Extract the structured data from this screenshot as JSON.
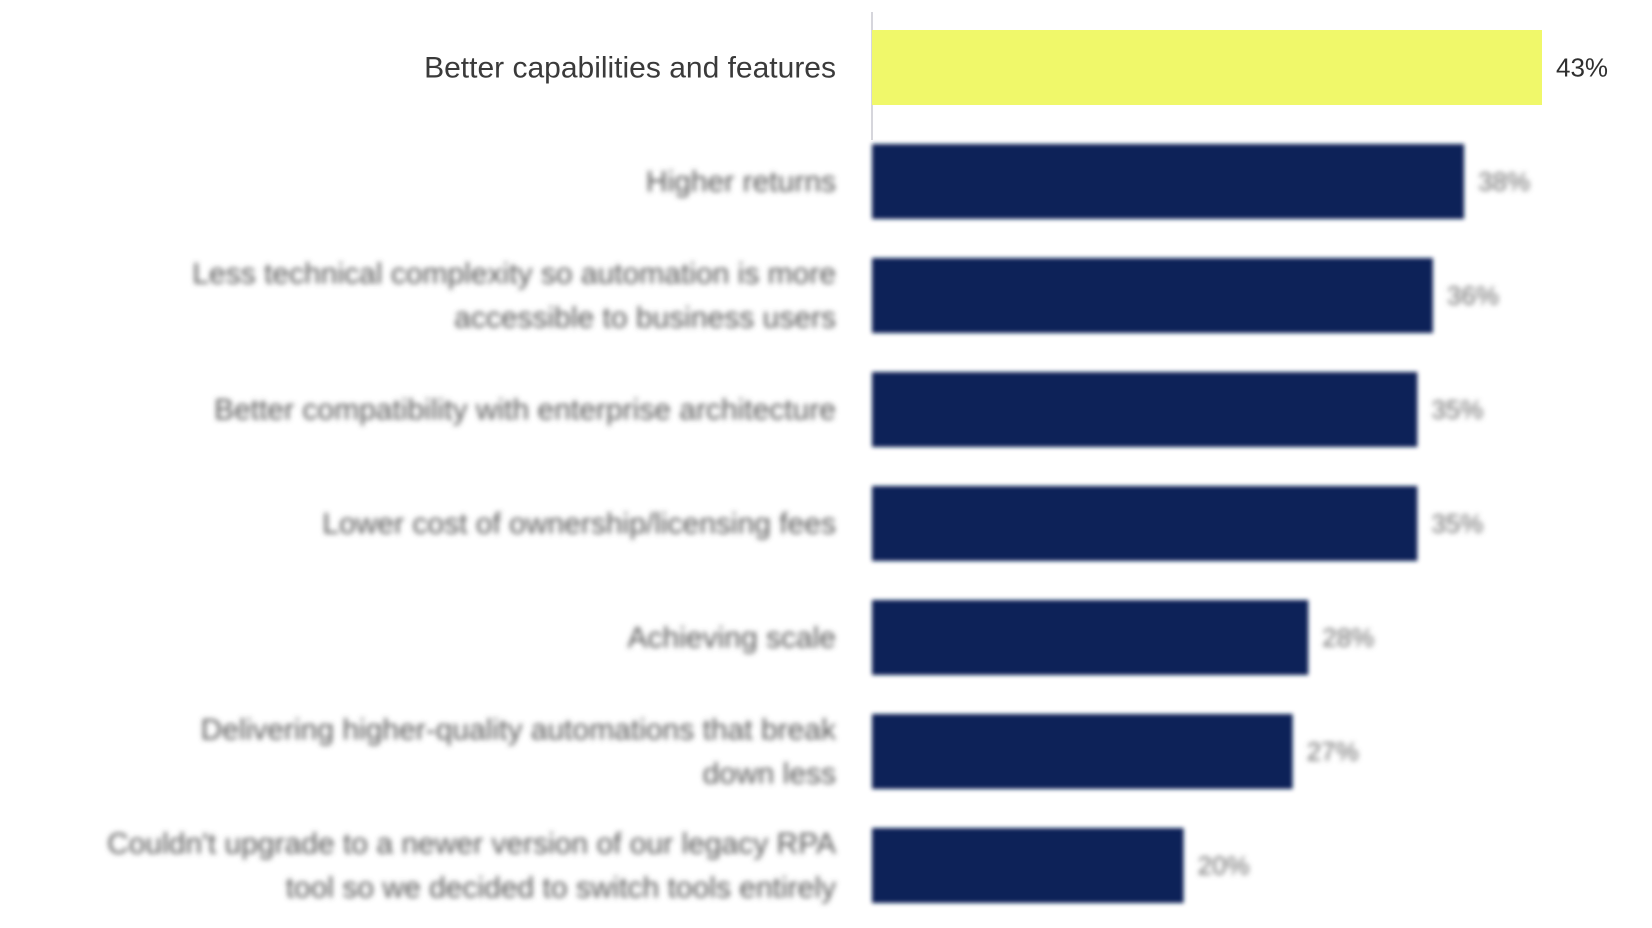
{
  "chart_data": {
    "type": "bar",
    "orientation": "horizontal",
    "categories": [
      "Better capabilities and features",
      "Higher returns",
      "Less technical complexity so automation is more accessible to business users",
      "Better compatibility with enterprise architecture",
      "Lower cost of ownership/licensing fees",
      "Achieving scale",
      "Delivering higher-quality automations that break down less",
      "Couldn't upgrade to a newer version of our legacy RPA tool so we decided to switch tools entirely"
    ],
    "category_lines": [
      [
        "Better capabilities and features"
      ],
      [
        "Higher returns"
      ],
      [
        "Less technical complexity so automation is more",
        "accessible to business users"
      ],
      [
        "Better compatibility with enterprise architecture"
      ],
      [
        "Lower cost of ownership/licensing fees"
      ],
      [
        "Achieving scale"
      ],
      [
        "Delivering higher-quality automations that break",
        "down less"
      ],
      [
        "Couldn't upgrade to a newer version of our legacy RPA",
        "tool so we decided to switch tools entirely"
      ]
    ],
    "values": [
      43,
      38,
      36,
      35,
      35,
      28,
      27,
      20
    ],
    "value_labels": [
      "43%",
      "38%",
      "36%",
      "35%",
      "35%",
      "28%",
      "27%",
      "20%"
    ],
    "highlight_index": 0,
    "xlim": [
      0,
      43
    ],
    "grid": false,
    "title": "",
    "xlabel": "",
    "ylabel": "",
    "colors": {
      "highlight": "#f0f86a",
      "bar": "#0b2159",
      "axis": "#c8c8d0"
    }
  }
}
